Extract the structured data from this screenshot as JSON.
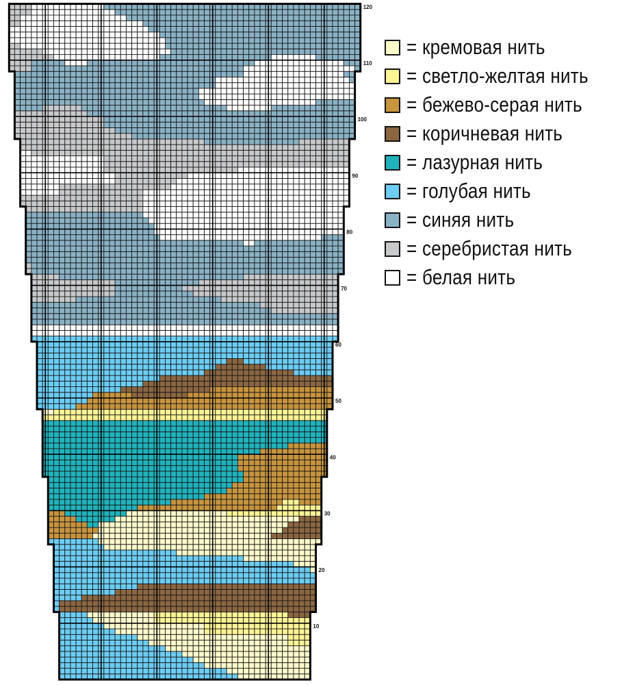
{
  "legend": [
    {
      "key": "K",
      "label": "= кремовая нить",
      "color": "#FFFBCB"
    },
    {
      "key": "Y",
      "label": "= светло-желтая нить",
      "color": "#FFF494"
    },
    {
      "key": "E",
      "label": "= бежево-серая нить",
      "color": "#C8943E"
    },
    {
      "key": "B",
      "label": "= коричневая нить",
      "color": "#8B6640"
    },
    {
      "key": "A",
      "label": "= лазурная нить",
      "color": "#20B3BD"
    },
    {
      "key": "L",
      "label": "= голубая нить",
      "color": "#6CCDF5"
    },
    {
      "key": "S",
      "label": "= синяя нить",
      "color": "#8AB2C6"
    },
    {
      "key": "G",
      "label": "= серебристая нить",
      "color": "#C8C9CB"
    },
    {
      "key": "W",
      "label": "= белая нить",
      "color": "#FFFFFF"
    }
  ],
  "chart_data": {
    "type": "knitting-chart",
    "total_rows": 120,
    "row_labels": [
      "10",
      "20",
      "30",
      "40",
      "50",
      "60",
      "70",
      "80",
      "90",
      "100",
      "110",
      "120"
    ],
    "band_rows": 12,
    "band_widths_stitches": [
      45,
      47,
      49,
      51,
      53,
      55,
      57,
      59,
      61,
      63
    ],
    "rows_bottom_to_top": [
      "L32 K*",
      "L30 K*",
      "L26 K*",
      "L24 K*",
      "L22 K*",
      "L19 K*",
      "L16 K25 Y*",
      "L14 K27 Y*",
      "L10 K16 Y*",
      "L8 K18 Y*",
      "L6 K11 Y*",
      "L5 K12 Y24 B*",
      "L1 B*",
      "L1 B*",
      "L5 B*",
      "L11 B*",
      "L15 B*",
      "L*",
      "L*",
      "L46 K*",
      "L43 K*",
      "L34 K*",
      "L22 K*",
      "L9 K*",
      "L9 K*",
      "E8 K32 B*",
      "E9 K33 B*",
      "E7 A2 K34 B*",
      "E5 A7 K33 B*",
      "E3 A11 K18 Y*",
      "A16 E25 Y*",
      "A22 E20 Y3 E*",
      "A28 E*",
      "A32 E*",
      "A33 E*",
      "A35 E*",
      "A36 E*",
      "A35 E*",
      "A35 E*",
      "A35 E*",
      "A39 E*",
      "A44 E*",
      "A*",
      "A*",
      "A*",
      "A*",
      "Y*",
      "K2 Y*",
      "L7 E*",
      "L9 E*",
      "L10 E7 B10 E*",
      "L15 B16 E*",
      "L19 B*",
      "L22 B*",
      "L30 B16 L*",
      "L32 B9 L*",
      "L34 B3 L*",
      "L*",
      "L*",
      "L*",
      "L*",
      "W*",
      "W*",
      "S*",
      "S*",
      "S43 G*",
      "S41 G*",
      "G8 S26 G*",
      "G15 S14 G*",
      "G15 S12 G*",
      "G15 S15 G*",
      "G5 S33 G*",
      "G1 S*",
      "G1 S*",
      "S*",
      "S*",
      "S*",
      "S39 W2 S*",
      "S24 W29 S*",
      "S23 W*",
      "S23 W*",
      "S22 W*",
      "S21 W*",
      "G21 W*",
      "G22 W*",
      "G22 W*",
      "W7 G15 W*",
      "W7 G20 W*",
      "W17 G11 W*",
      "W17 G13 W*",
      "W15 G24 W*",
      "W15 G*",
      "W15 G*",
      "W2 G*",
      "G*",
      "G33 S17 G*",
      "G21 S*",
      "G18 S*",
      "G16 S*",
      "G16 S*",
      "G13 S*",
      "S5 G7 S26 W8 S*",
      "S34 W20 S*",
      "S33 W*",
      "S33 W*",
      "S36 W*",
      "S36 W24 S*",
      "S41 W18 S*",
      "G4 S38 W20 S*",
      "G4 S6 W4 S30 W16 S*",
      "G8 W19 S20 W8 S*",
      "G6 W23 S*",
      "G2 W26 S*",
      "W28 S*",
      "W27 S*",
      "W25 S*",
      "G2 W22 S*",
      "G2 W19 S*",
      "G4 W15 S*",
      "G4 W13 S*"
    ]
  }
}
